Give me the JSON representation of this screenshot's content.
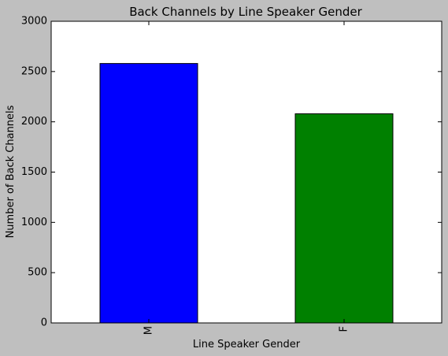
{
  "chart_data": {
    "type": "bar",
    "title": "Back Channels by Line Speaker Gender",
    "xlabel": "Line Speaker Gender",
    "ylabel": "Number of Back Channels",
    "categories": [
      "M",
      "F"
    ],
    "values": [
      2580,
      2080
    ],
    "colors": [
      "#0000ff",
      "#008000"
    ],
    "ylim": [
      0,
      3000
    ],
    "yticks": [
      0,
      500,
      1000,
      1500,
      2000,
      2500,
      3000
    ],
    "grid": false,
    "legend": "none"
  }
}
